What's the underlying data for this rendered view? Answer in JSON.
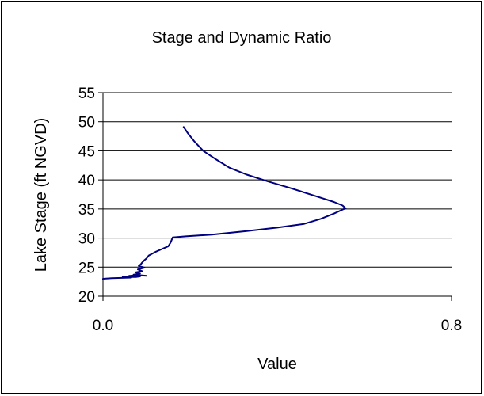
{
  "chart_data": {
    "type": "line",
    "title": "Stage and Dynamic Ratio",
    "xlabel": "Value",
    "ylabel": "Lake Stage (ft NGVD)",
    "xlim": [
      0.0,
      0.8
    ],
    "ylim": [
      20,
      55
    ],
    "x_ticks": [
      0.0,
      0.8
    ],
    "x_tick_labels": [
      "0.0",
      "0.8"
    ],
    "y_ticks": [
      20,
      25,
      30,
      35,
      40,
      45,
      50,
      55
    ],
    "y_tick_labels": [
      "20",
      "25",
      "30",
      "35",
      "40",
      "45",
      "50",
      "55"
    ],
    "grid": "horizontal",
    "legend": "none",
    "line_color": "#000080",
    "series": [
      {
        "x": [
          0.0,
          0.0,
          0.02,
          0.065,
          0.045,
          0.075,
          0.085,
          0.06,
          0.08,
          0.1,
          0.07,
          0.085,
          0.075,
          0.09,
          0.08,
          0.095,
          0.082,
          0.087,
          0.09,
          0.095,
          0.1,
          0.105,
          0.12,
          0.135,
          0.15,
          0.155,
          0.16,
          0.19,
          0.25,
          0.33,
          0.4,
          0.46,
          0.5,
          0.53,
          0.55,
          0.557,
          0.55,
          0.53,
          0.48,
          0.43,
          0.38,
          0.33,
          0.29,
          0.26,
          0.23,
          0.21,
          0.195,
          0.185
        ],
        "y": [
          22.9,
          23.0,
          23.1,
          23.2,
          23.3,
          23.3,
          23.4,
          23.5,
          23.6,
          23.5,
          23.7,
          23.9,
          24.1,
          24.3,
          24.6,
          24.9,
          25.2,
          25.5,
          25.8,
          26.2,
          26.5,
          27.0,
          27.6,
          28.1,
          28.6,
          29.2,
          30.1,
          30.3,
          30.6,
          31.2,
          31.8,
          32.4,
          33.3,
          34.2,
          34.9,
          35.1,
          35.6,
          36.2,
          37.4,
          38.6,
          39.7,
          40.9,
          42.1,
          43.5,
          45.0,
          46.6,
          48.0,
          49.1
        ]
      }
    ]
  }
}
